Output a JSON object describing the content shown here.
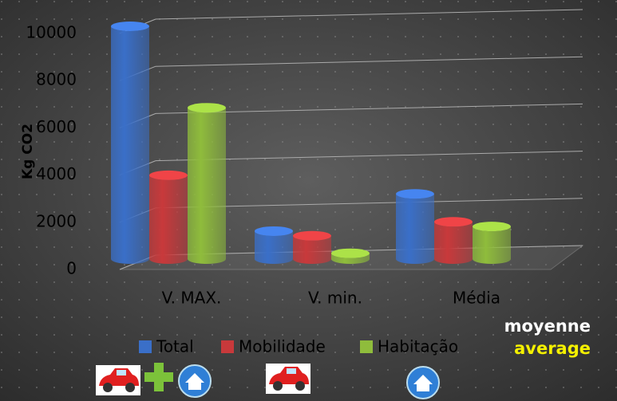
{
  "chart_data": {
    "type": "bar3d",
    "y_label": "Kg CO2",
    "categories": [
      "V. MAX.",
      "V. min.",
      "Média"
    ],
    "series": [
      {
        "name": "Total",
        "color": "#3a6fc8",
        "values": [
          10000,
          1200,
          2800
        ]
      },
      {
        "name": "Mobilidade",
        "color": "#c8393b",
        "values": [
          3600,
          1000,
          1600
        ]
      },
      {
        "name": "Habitação",
        "color": "#8fbc3c",
        "values": [
          6500,
          250,
          1400
        ]
      }
    ],
    "ylim": [
      0,
      10000
    ],
    "yticks": [
      0,
      2000,
      4000,
      6000,
      8000,
      10000
    ],
    "grid": true,
    "annotations": [
      "moyenne",
      "average"
    ]
  }
}
